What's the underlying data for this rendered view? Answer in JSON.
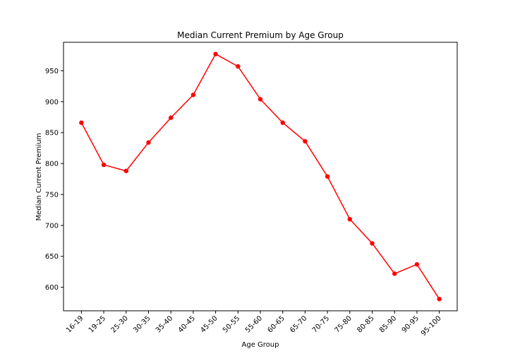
{
  "chart_data": {
    "type": "line",
    "title": "Median Current Premium by Age Group",
    "xlabel": "Age Group",
    "ylabel": "Median Current Premium",
    "categories": [
      "16-19",
      "19-25",
      "25-30",
      "30-35",
      "35-40",
      "40-45",
      "45-50",
      "50-55",
      "55-60",
      "60-65",
      "65-70",
      "70-75",
      "75-80",
      "80-85",
      "85-90",
      "90-95",
      "95-100"
    ],
    "series": [
      {
        "values": [
          866,
          798,
          788,
          834,
          874,
          911,
          977,
          957,
          904,
          866,
          836,
          779,
          710,
          671,
          622,
          637,
          581
        ],
        "color": "#ff0000",
        "marker": "circle"
      }
    ],
    "ylim": [
      562,
      996
    ],
    "yticks": [
      600,
      650,
      700,
      750,
      800,
      850,
      900,
      950
    ],
    "grid": false,
    "legend": "none"
  }
}
